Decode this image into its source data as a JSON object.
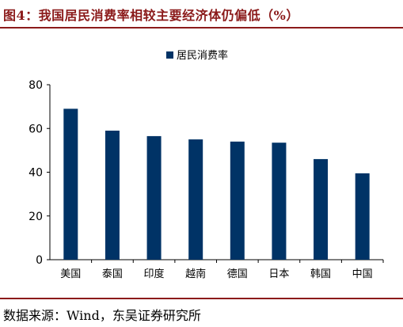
{
  "header": {
    "title": "图4：我国居民消费率相较主要经济体仍偏低（%）"
  },
  "footer": {
    "source": "数据来源：Wind，东吴证券研究所"
  },
  "chart_data": {
    "type": "bar",
    "title": "",
    "xlabel": "",
    "ylabel": "",
    "categories": [
      "美国",
      "泰国",
      "印度",
      "越南",
      "德国",
      "日本",
      "韩国",
      "中国"
    ],
    "series": [
      {
        "name": "居民消费率",
        "values": [
          69,
          59,
          56.5,
          55,
          54,
          53.5,
          46,
          39.5
        ],
        "color": "#003366"
      }
    ],
    "ylim": [
      0,
      80
    ],
    "yticks": [
      0,
      20,
      40,
      60,
      80
    ],
    "grid": false,
    "legend_position": "top-center"
  }
}
